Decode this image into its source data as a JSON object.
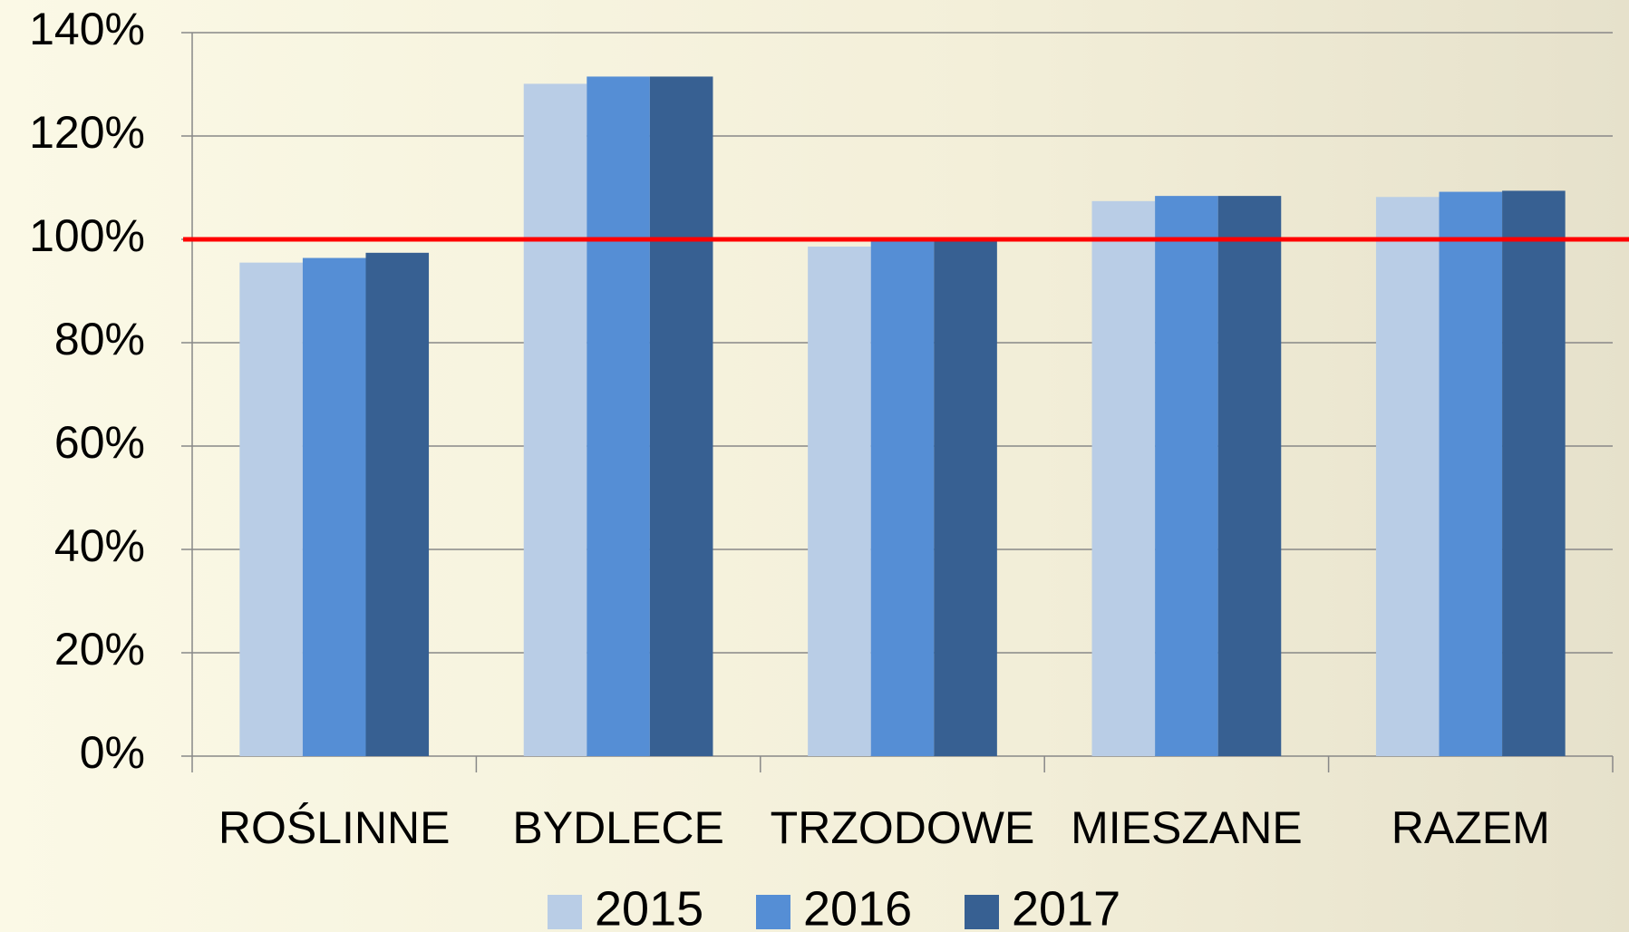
{
  "chart_data": {
    "type": "bar",
    "categories": [
      "ROŚLINNE",
      "BYDLECE",
      "TRZODOWE",
      "MIESZANE",
      "RAZEM"
    ],
    "series": [
      {
        "name": "2015",
        "color": "#b9cde6",
        "values": [
          95.5,
          130.1,
          98.6,
          107.4,
          108.2
        ]
      },
      {
        "name": "2016",
        "color": "#558ed5",
        "values": [
          96.4,
          131.5,
          99.6,
          108.4,
          109.2
        ]
      },
      {
        "name": "2017",
        "color": "#376092",
        "values": [
          97.4,
          131.5,
          99.6,
          108.4,
          109.4
        ]
      }
    ],
    "ylim": [
      0,
      140
    ],
    "yticks": [
      {
        "value": 0,
        "label": "0%"
      },
      {
        "value": 20,
        "label": "20%"
      },
      {
        "value": 40,
        "label": "40%"
      },
      {
        "value": 60,
        "label": "60%"
      },
      {
        "value": 80,
        "label": "80%"
      },
      {
        "value": 100,
        "label": "100%"
      },
      {
        "value": 120,
        "label": "120%"
      },
      {
        "value": 140,
        "label": "140%"
      }
    ],
    "grid": true,
    "reference_line": {
      "value": 100,
      "color": "#ff0000"
    },
    "legend": "bottom"
  }
}
